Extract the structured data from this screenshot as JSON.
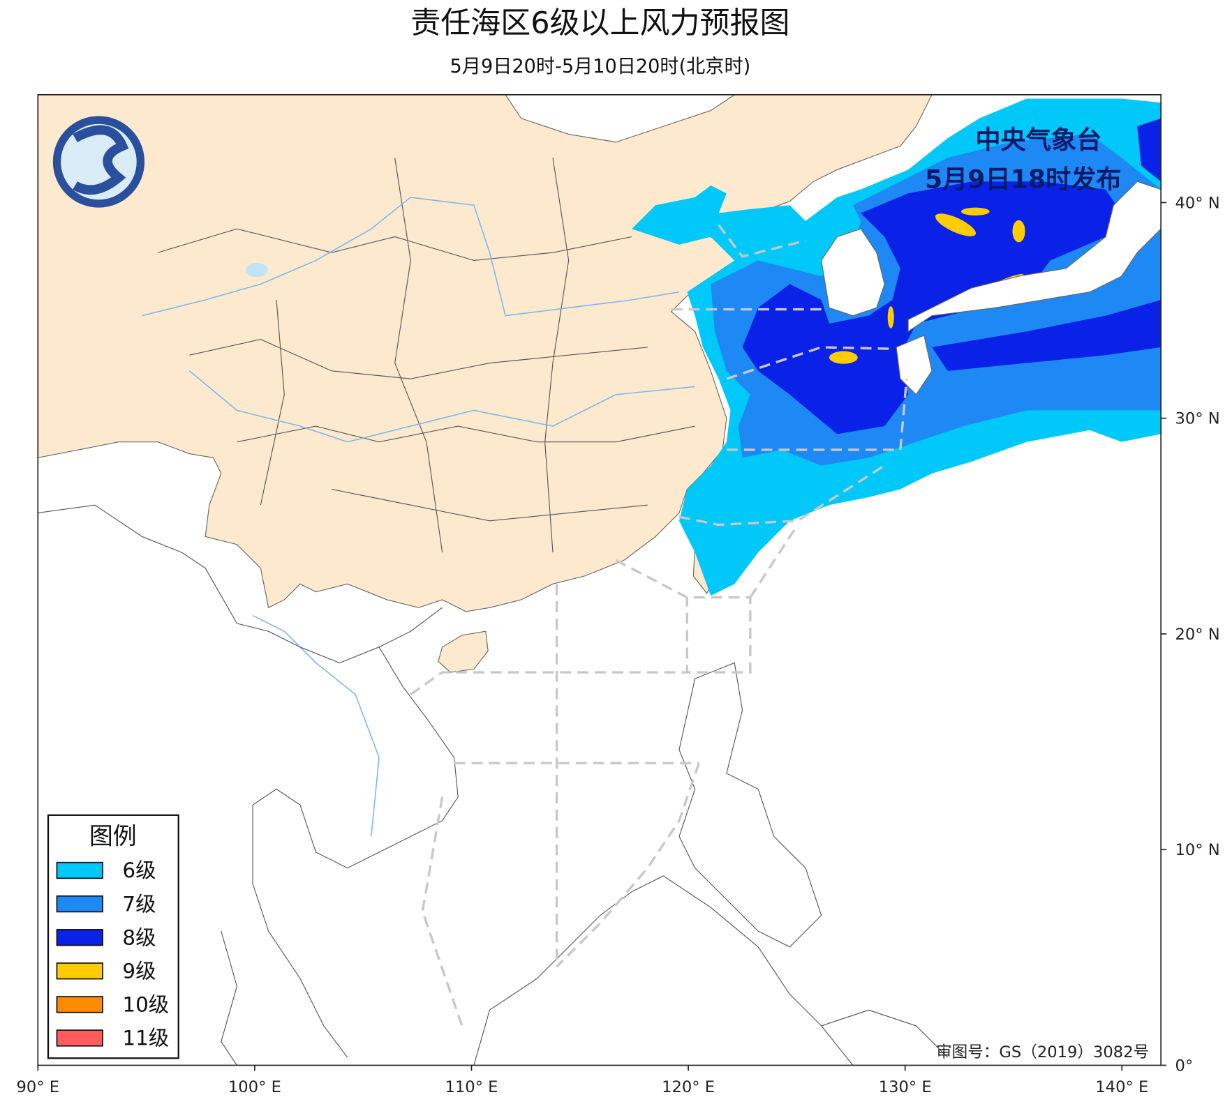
{
  "header": {
    "title": "责任海区6级以上风力预报图",
    "subtitle": "5月9日20时-5月10日20时(北京时)"
  },
  "issuer": {
    "line1": "中央气象台",
    "line2": "5月9日18时发布"
  },
  "legend": {
    "title": "图例",
    "items": [
      {
        "label": "6级",
        "color": "#00c8f8"
      },
      {
        "label": "7级",
        "color": "#1e88f5"
      },
      {
        "label": "8级",
        "color": "#0a22e8"
      },
      {
        "label": "9级",
        "color": "#ffcc00"
      },
      {
        "label": "10级",
        "color": "#ff8c00"
      },
      {
        "label": "11级",
        "color": "#ff5c5c"
      }
    ]
  },
  "map": {
    "lon_range": [
      90,
      141.8
    ],
    "lat_range": [
      0,
      45
    ],
    "lon_ticks": [
      {
        "value": 90,
        "label": "90° E"
      },
      {
        "value": 100,
        "label": "100° E"
      },
      {
        "value": 110,
        "label": "110° E"
      },
      {
        "value": 120,
        "label": "120° E"
      },
      {
        "value": 130,
        "label": "130° E"
      },
      {
        "value": 140,
        "label": "140° E"
      }
    ],
    "lat_ticks": [
      {
        "value": 0,
        "label": "0°"
      },
      {
        "value": 10,
        "label": "10° N"
      },
      {
        "value": 20,
        "label": "20° N"
      },
      {
        "value": 30,
        "label": "30° N"
      },
      {
        "value": 40,
        "label": "40° N"
      }
    ]
  },
  "footer": {
    "approval": "审图号：GS（2019）3082号"
  }
}
